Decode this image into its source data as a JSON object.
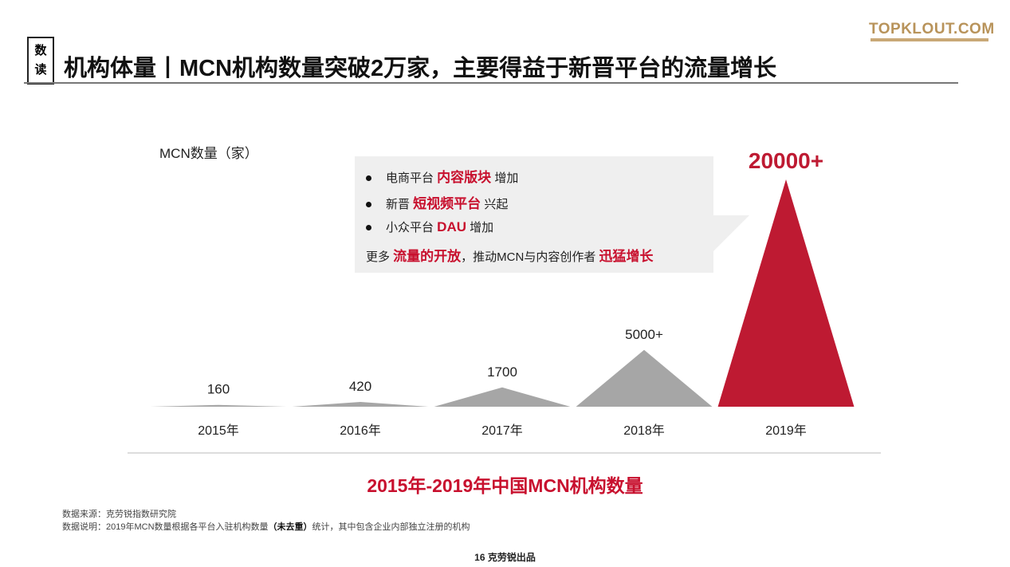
{
  "header": {
    "tag": [
      "数",
      "读"
    ],
    "title": "机构体量丨MCN机构数量突破2万家，主要得益于新晋平台的流量增长",
    "logo": "TOPKLOUT.COM"
  },
  "chart_data": {
    "type": "triangle",
    "title": "2015年-2019年中国MCN机构数量",
    "y_label": "MCN数量（家）",
    "categories": [
      "2015年",
      "2016年",
      "2017年",
      "2018年",
      "2019年"
    ],
    "values": [
      160,
      420,
      1700,
      5000,
      20000
    ],
    "value_labels": [
      "160",
      "420",
      "1700",
      "5000+",
      "20000+"
    ],
    "colors": [
      "#a6a6a6",
      "#a6a6a6",
      "#a6a6a6",
      "#a6a6a6",
      "#be1a32"
    ]
  },
  "callout": {
    "lines": [
      {
        "bullet": true,
        "segments": [
          {
            "text": "电商平台 "
          },
          {
            "text": "内容版块",
            "highlight": true
          },
          {
            "text": " 增加"
          }
        ]
      },
      {
        "bullet": true,
        "segments": [
          {
            "text": "新晋 "
          },
          {
            "text": "短视频平台",
            "highlight": true
          },
          {
            "text": " 兴起"
          }
        ]
      },
      {
        "bullet": true,
        "segments": [
          {
            "text": "小众平台 "
          },
          {
            "text": "DAU",
            "highlight": true
          },
          {
            "text": " 增加"
          }
        ]
      },
      {
        "bullet": false,
        "segments": [
          {
            "text": "更多 "
          },
          {
            "text": "流量的开放",
            "highlight": true
          },
          {
            "text": "，推动MCN与内容创作者 "
          },
          {
            "text": "迅猛增长",
            "highlight": true
          }
        ]
      }
    ]
  },
  "notes": [
    {
      "segments": [
        {
          "text": "数据来源：克劳锐指数研究院"
        }
      ]
    },
    {
      "segments": [
        {
          "text": "数据说明：2019年MCN数量根据各平台入驻机构数量"
        },
        {
          "text": "（未去重）",
          "highlight": true
        },
        {
          "text": "统计，其中包含企业内部独立注册的机构"
        }
      ]
    }
  ],
  "footer": "16 克劳锐出品"
}
